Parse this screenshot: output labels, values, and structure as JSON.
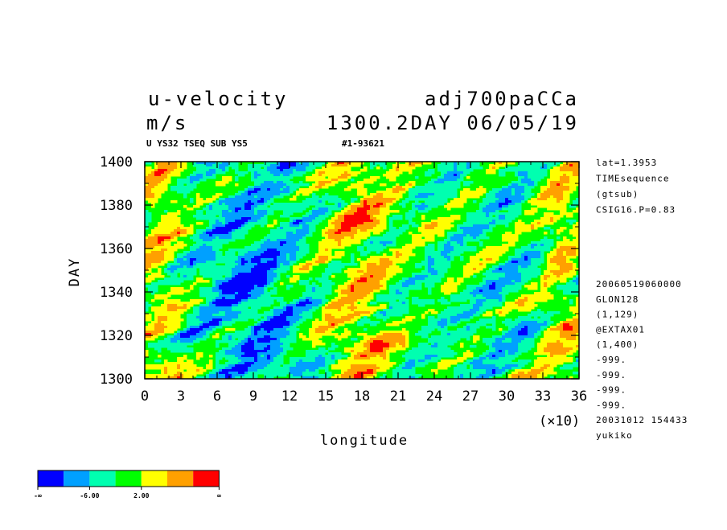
{
  "header": {
    "var_name": "u-velocity",
    "units": "m/s",
    "run_name": "adj700paCCa",
    "time_label": "1300.2DAY 06/05/19",
    "subtitle_left": "U YS32 TSEQ SUB YS5",
    "subtitle_right": "#1-93621"
  },
  "side_info_top": [
    "lat=1.3953",
    "TIMEsequence",
    "(gtsub)",
    "CSIG16.P=0.83"
  ],
  "side_info_bottom": [
    "20060519060000",
    "GLON128",
    "(1,129)",
    "@EXTAX01",
    "(1,400)",
    "-999.",
    "-999.",
    "-999.",
    "-999.",
    "20031012 154433",
    "yukiko"
  ],
  "chart_data": {
    "type": "heatmap",
    "title": "u-velocity",
    "xlabel": "longitude",
    "ylabel": "DAY",
    "x_multiplier_label": "(×10)",
    "xlim": [
      0,
      36
    ],
    "ylim": [
      1300,
      1400
    ],
    "x_ticks": [
      "0",
      "3",
      "6",
      "9",
      "12",
      "15",
      "18",
      "21",
      "24",
      "27",
      "30",
      "33",
      "36"
    ],
    "y_ticks": [
      "1300",
      "1320",
      "1340",
      "1360",
      "1380",
      "1400"
    ],
    "grid": false,
    "colorbar": {
      "colors": [
        "#0000ff",
        "#00a0ff",
        "#00ffb0",
        "#00ff00",
        "#ffff00",
        "#ffa000",
        "#ff0000"
      ],
      "labels": [
        "-∞",
        "-6.00",
        "2.00",
        "∞"
      ]
    }
  }
}
